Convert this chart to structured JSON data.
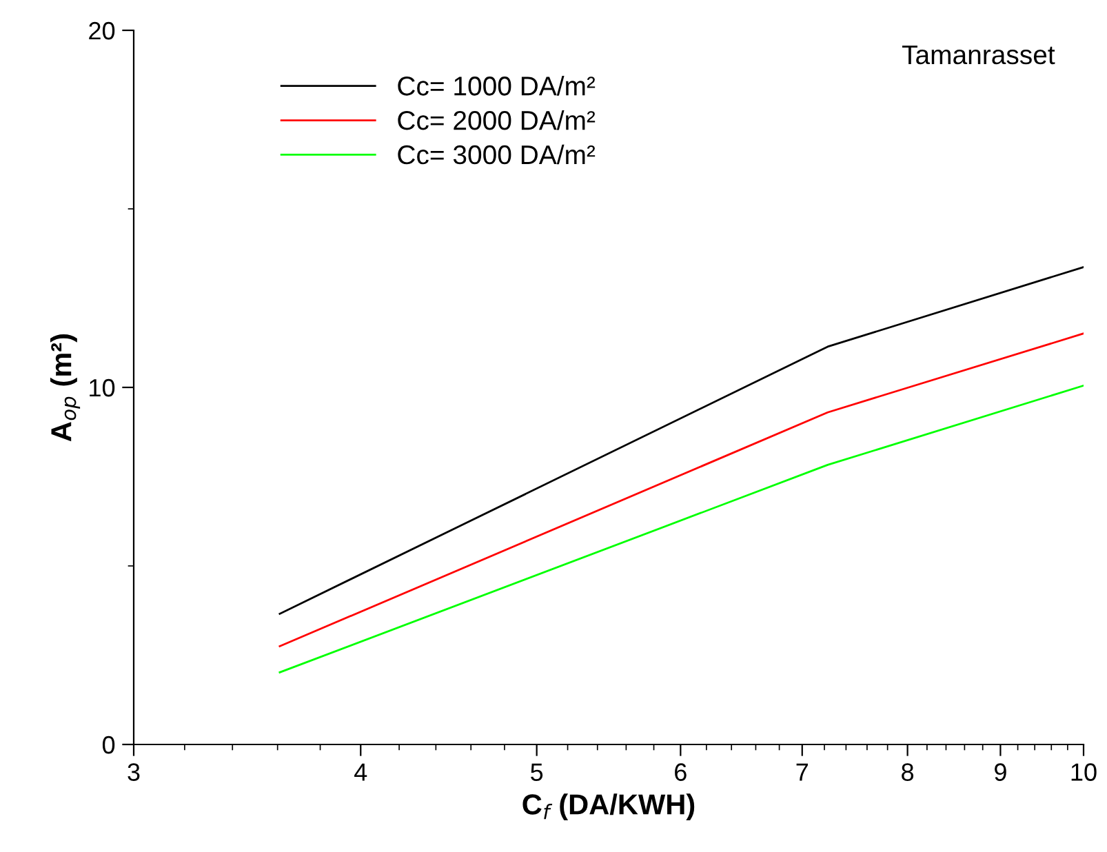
{
  "chart_data": {
    "type": "line",
    "xlabel": "C$_{f}$ (DA/KWH)",
    "ylabel": "A$_{op}$ (m²)",
    "annotations": [
      "Tamanrasset"
    ],
    "x": [
      3.61,
      7.23,
      10
    ],
    "series": [
      {
        "name": "Cc= 1000 DA/m²",
        "color": "#000000",
        "values": [
          3.66,
          11.14,
          13.37
        ]
      },
      {
        "name": "Cc= 2000 DA/m²",
        "color": "#ff0000",
        "values": [
          2.75,
          9.3,
          11.51
        ]
      },
      {
        "name": "Cc= 3000 DA/m²",
        "color": "#00ff00",
        "values": [
          2.02,
          7.83,
          10.05
        ]
      }
    ],
    "log": "x",
    "xlim": [
      3,
      10
    ],
    "xticks": [
      3,
      4,
      5,
      6,
      7,
      8,
      9,
      10
    ],
    "ylim": [
      0,
      20
    ],
    "yticks": [
      0,
      {
        "value": 5,
        "label": null
      },
      10,
      {
        "value": 15,
        "label": null
      },
      20
    ],
    "legend": "top left",
    "marker": "none",
    "line_style": "solid",
    "grid": false
  }
}
